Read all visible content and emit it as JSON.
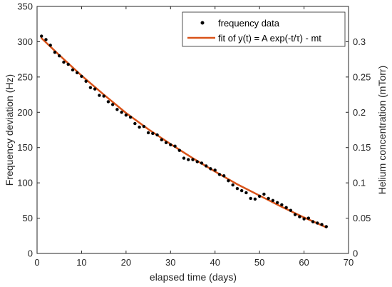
{
  "chart_data": {
    "type": "scatter",
    "xlabel": "elapsed time (days)",
    "ylabel": "Frequency deviation (Hz)",
    "y2label": "Helium concentration (mTorr)",
    "xlim": [
      0,
      70
    ],
    "ylim": [
      0,
      350
    ],
    "y2lim": [
      0,
      0.35
    ],
    "x_ticks": [
      "0",
      "10",
      "20",
      "30",
      "40",
      "50",
      "60",
      "70"
    ],
    "y_ticks": [
      "0",
      "50",
      "100",
      "150",
      "200",
      "250",
      "300",
      "350"
    ],
    "y2_ticks": [
      "0",
      "0.05",
      "0.1",
      "0.15",
      "0.2",
      "0.25",
      "0.3"
    ],
    "grid": false,
    "legend_position": "top-right",
    "legend": {
      "scatter_label": "frequency data",
      "line_label": "fit of y(t) = A exp(-t/τ) - mt"
    },
    "colors": {
      "scatter": "#000000",
      "fit": "#d95319",
      "axes": "#262626"
    },
    "series": [
      {
        "name": "frequency data",
        "type": "scatter",
        "x": [
          1,
          2,
          3,
          4,
          5,
          6,
          7,
          8,
          9,
          10,
          11,
          12,
          13,
          14,
          15,
          16,
          17,
          18,
          19,
          20,
          21,
          22,
          23,
          24,
          25,
          26,
          27,
          28,
          29,
          30,
          31,
          32,
          33,
          34,
          35,
          36,
          37,
          38,
          39,
          40,
          41,
          42,
          43,
          44,
          45,
          46,
          47,
          48,
          49,
          50,
          51,
          52,
          53,
          54,
          55,
          56,
          57,
          58,
          59,
          60,
          61,
          62,
          63,
          64,
          65
        ],
        "y": [
          308,
          303,
          295,
          285,
          280,
          271,
          268,
          260,
          256,
          251,
          244,
          235,
          233,
          224,
          223,
          215,
          211,
          204,
          200,
          196,
          193,
          184,
          179,
          180,
          171,
          170,
          168,
          161,
          157,
          154,
          152,
          146,
          135,
          133,
          133,
          130,
          128,
          124,
          120,
          118,
          112,
          110,
          103,
          97,
          92,
          89,
          86,
          78,
          77,
          81,
          84,
          78,
          75,
          72,
          69,
          65,
          61,
          55,
          52,
          49,
          50,
          45,
          43,
          41,
          38
        ]
      },
      {
        "name": "fit of y(t) = A exp(-t/τ) - mt",
        "type": "line",
        "x": [
          1,
          5,
          10,
          15,
          20,
          25,
          30,
          35,
          40,
          45,
          50,
          55,
          60,
          65
        ],
        "y": [
          305,
          281,
          252,
          225,
          199,
          176,
          155,
          135,
          116,
          98,
          82,
          66,
          51,
          37
        ]
      }
    ]
  }
}
